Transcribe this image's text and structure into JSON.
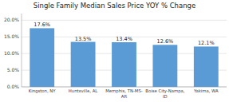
{
  "chart_data": {
    "type": "bar",
    "title": "Single Family Median Sales Price YOY % Change",
    "categories": [
      "Kingston, NY",
      "Huntsville, AL",
      "Memphis, TN-MS-\nAR",
      "Boise City-Nampa,\nID",
      "Yakima, WA"
    ],
    "values": [
      17.6,
      13.5,
      13.4,
      12.6,
      12.1
    ],
    "value_labels": [
      "17.6%",
      "13.5%",
      "13.4%",
      "12.6%",
      "12.1%"
    ],
    "data_labels": true,
    "color": "#5b9bd5",
    "ylim": [
      0,
      22
    ],
    "yticks": [
      {
        "value": 0.0,
        "label": "0.0%"
      },
      {
        "value": 5.0,
        "label": "5.0%"
      },
      {
        "value": 10.0,
        "label": "10.0%"
      },
      {
        "value": 15.0,
        "label": "15.0%"
      },
      {
        "value": 20.0,
        "label": "20.0%"
      }
    ],
    "grid": true
  }
}
